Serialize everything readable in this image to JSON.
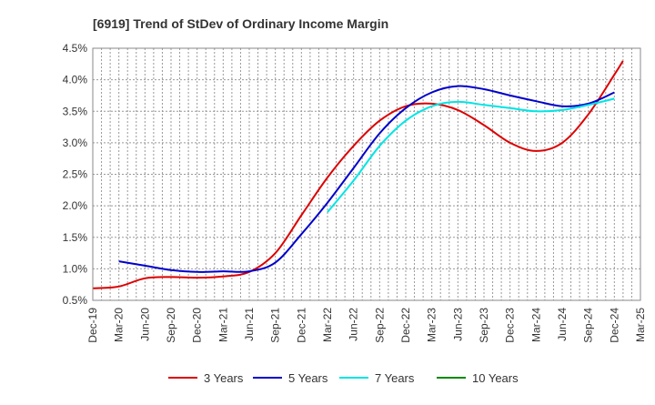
{
  "chart_data": {
    "type": "line",
    "title": "[6919]  Trend of StDev of Ordinary Income Margin",
    "xlabel": "",
    "ylabel": "",
    "x_ticks": [
      "Dec-19",
      "Mar-20",
      "Jun-20",
      "Sep-20",
      "Dec-20",
      "Mar-21",
      "Jun-21",
      "Sep-21",
      "Dec-21",
      "Mar-22",
      "Jun-22",
      "Sep-22",
      "Dec-22",
      "Mar-23",
      "Jun-23",
      "Sep-23",
      "Dec-23",
      "Mar-24",
      "Jun-24",
      "Sep-24",
      "Dec-24",
      "Mar-25"
    ],
    "y_ticks": [
      "0.5%",
      "1.0%",
      "1.5%",
      "2.0%",
      "2.5%",
      "3.0%",
      "3.5%",
      "4.0%",
      "4.5%"
    ],
    "ylim": [
      0.5,
      4.5
    ],
    "grid": true,
    "legend_position": "bottom",
    "series": [
      {
        "name": "3 Years",
        "color": "#dd0000",
        "values": [
          [
            0,
            0.69
          ],
          [
            1,
            0.72
          ],
          [
            2,
            0.85
          ],
          [
            3,
            0.87
          ],
          [
            4,
            0.86
          ],
          [
            5,
            0.88
          ],
          [
            6,
            0.95
          ],
          [
            7,
            1.25
          ],
          [
            8,
            1.85
          ],
          [
            9,
            2.45
          ],
          [
            10,
            2.95
          ],
          [
            11,
            3.35
          ],
          [
            12,
            3.58
          ],
          [
            13,
            3.62
          ],
          [
            14,
            3.52
          ],
          [
            15,
            3.28
          ],
          [
            16,
            3.0
          ],
          [
            17,
            2.87
          ],
          [
            18,
            3.0
          ],
          [
            19,
            3.45
          ],
          [
            20,
            4.08
          ],
          [
            20.33,
            4.3
          ]
        ]
      },
      {
        "name": "5 Years",
        "color": "#0000cc",
        "values": [
          [
            1,
            1.12
          ],
          [
            2,
            1.05
          ],
          [
            3,
            0.98
          ],
          [
            4,
            0.95
          ],
          [
            5,
            0.96
          ],
          [
            6,
            0.96
          ],
          [
            7,
            1.1
          ],
          [
            8,
            1.55
          ],
          [
            9,
            2.05
          ],
          [
            10,
            2.6
          ],
          [
            11,
            3.15
          ],
          [
            12,
            3.55
          ],
          [
            13,
            3.8
          ],
          [
            14,
            3.9
          ],
          [
            15,
            3.85
          ],
          [
            16,
            3.75
          ],
          [
            17,
            3.66
          ],
          [
            18,
            3.58
          ],
          [
            19,
            3.62
          ],
          [
            20,
            3.8
          ]
        ]
      },
      {
        "name": "7 Years",
        "color": "#00e5e5",
        "values": [
          [
            9,
            1.9
          ],
          [
            10,
            2.4
          ],
          [
            11,
            2.95
          ],
          [
            12,
            3.35
          ],
          [
            13,
            3.58
          ],
          [
            14,
            3.65
          ],
          [
            15,
            3.6
          ],
          [
            16,
            3.55
          ],
          [
            17,
            3.5
          ],
          [
            18,
            3.52
          ],
          [
            19,
            3.6
          ],
          [
            20,
            3.7
          ]
        ]
      },
      {
        "name": "10 Years",
        "color": "#008800",
        "values": []
      }
    ]
  }
}
